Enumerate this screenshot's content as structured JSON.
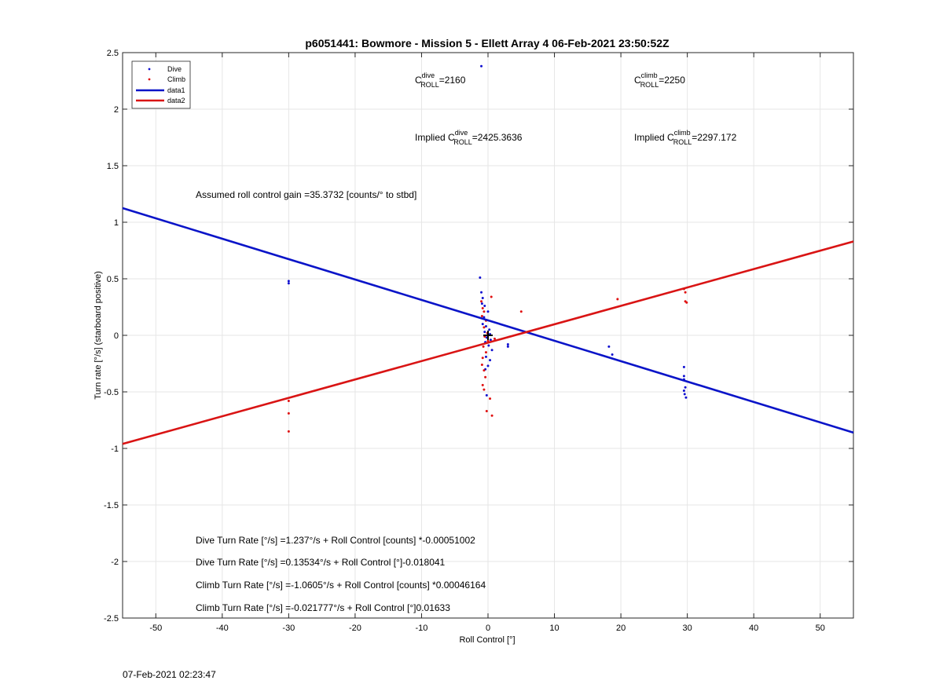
{
  "footer_timestamp": "07-Feb-2021 02:23:47",
  "colors": {
    "dive": "#1010d0",
    "climb": "#e01010",
    "dive_fit": "#0a14c8",
    "climb_fit": "#d91414",
    "grid": "#e6e6e6"
  },
  "chart_data": {
    "type": "scatter",
    "title": "p6051441: Bowmore - Mission 5 - Ellett Array 4 06-Feb-2021 23:50:52Z",
    "xlabel": "Roll Control [°]",
    "ylabel": "Turn rate [°/s] (starboard positive)",
    "xlim": [
      -55,
      55
    ],
    "ylim": [
      -2.5,
      2.5
    ],
    "xticks": [
      -50,
      -40,
      -30,
      -20,
      -10,
      0,
      10,
      20,
      30,
      40,
      50
    ],
    "yticks": [
      -2.5,
      -2,
      -1.5,
      -1,
      -0.5,
      0,
      0.5,
      1,
      1.5,
      2,
      2.5
    ],
    "grid": true,
    "legend_position": "top-left",
    "legend": [
      "Dive",
      "Climb",
      "data1",
      "data2"
    ],
    "series": [
      {
        "name": "Dive",
        "kind": "points",
        "color": "#1010d0",
        "points": [
          [
            -30,
            0.48
          ],
          [
            -30,
            0.46
          ],
          [
            -1,
            2.38
          ],
          [
            -1.2,
            0.51
          ],
          [
            -1,
            0.38
          ],
          [
            -0.8,
            0.33
          ],
          [
            -0.9,
            0.28
          ],
          [
            -0.5,
            0.26
          ],
          [
            0,
            0.21
          ],
          [
            -0.6,
            0.16
          ],
          [
            -0.8,
            0.1
          ],
          [
            -0.3,
            0.08
          ],
          [
            0.2,
            0.05
          ],
          [
            -0.5,
            0.03
          ],
          [
            0.3,
            0.01
          ],
          [
            -0.2,
            -0.02
          ],
          [
            0.4,
            -0.04
          ],
          [
            -0.4,
            -0.06
          ],
          [
            0.1,
            -0.09
          ],
          [
            0.6,
            -0.13
          ],
          [
            -0.3,
            -0.19
          ],
          [
            0.3,
            -0.22
          ],
          [
            0,
            -0.27
          ],
          [
            -0.4,
            -0.3
          ],
          [
            -0.2,
            -0.53
          ],
          [
            3,
            -0.08
          ],
          [
            3,
            -0.1
          ],
          [
            18.2,
            -0.1
          ],
          [
            18.7,
            -0.17
          ],
          [
            29.5,
            -0.28
          ],
          [
            29.5,
            -0.36
          ],
          [
            29.5,
            -0.39
          ],
          [
            29.7,
            -0.46
          ],
          [
            29.5,
            -0.49
          ],
          [
            29.6,
            -0.52
          ],
          [
            29.8,
            -0.55
          ]
        ]
      },
      {
        "name": "Climb",
        "kind": "points",
        "color": "#e01010",
        "points": [
          [
            -30,
            -0.58
          ],
          [
            -30,
            -0.69
          ],
          [
            -30,
            -0.85
          ],
          [
            -1,
            0.3
          ],
          [
            -0.8,
            0.24
          ],
          [
            -0.6,
            0.21
          ],
          [
            -0.9,
            0.17
          ],
          [
            -0.3,
            0.13
          ],
          [
            -0.6,
            0.07
          ],
          [
            -0.1,
            0.02
          ],
          [
            -0.5,
            -0.01
          ],
          [
            0,
            -0.05
          ],
          [
            -0.7,
            -0.1
          ],
          [
            -0.3,
            -0.15
          ],
          [
            -0.8,
            -0.2
          ],
          [
            -0.9,
            -0.26
          ],
          [
            -0.6,
            -0.31
          ],
          [
            -0.4,
            -0.37
          ],
          [
            -0.8,
            -0.44
          ],
          [
            -0.6,
            -0.48
          ],
          [
            0.3,
            -0.56
          ],
          [
            -0.2,
            -0.67
          ],
          [
            0.6,
            -0.71
          ],
          [
            0.5,
            0.34
          ],
          [
            1,
            -0.03
          ],
          [
            5,
            0.21
          ],
          [
            19.5,
            0.32
          ],
          [
            29.5,
            0.41
          ],
          [
            29.7,
            0.38
          ],
          [
            29.7,
            0.3
          ],
          [
            29.9,
            0.29
          ]
        ]
      },
      {
        "name": "data1",
        "kind": "line",
        "color": "#0a14c8",
        "x": [
          -55,
          55
        ],
        "y": [
          1.125,
          -0.86
        ]
      },
      {
        "name": "data2",
        "kind": "line",
        "color": "#d91414",
        "x": [
          -55,
          55
        ],
        "y": [
          -0.96,
          0.83
        ]
      }
    ],
    "marker_point": [
      0,
      0
    ],
    "annotations": {
      "c_dive_label": "C",
      "c_dive_sup": "dive",
      "c_dive_sub": "ROLL",
      "c_dive_value": "=2160",
      "c_climb_label": "C",
      "c_climb_sup": "climb",
      "c_climb_sub": "ROLL",
      "c_climb_value": "=2250",
      "implied_dive_prefix": "Implied C",
      "implied_dive_sup": "dive",
      "implied_dive_sub": "ROLL",
      "implied_dive_value": "=2425.3636",
      "implied_climb_prefix": "Implied C",
      "implied_climb_sup": "climb",
      "implied_climb_sub": "ROLL",
      "implied_climb_value": "=2297.172",
      "gain": "Assumed roll control gain =35.3732 [counts/° to stbd]",
      "eq1": "Dive Turn Rate [°/s] =1.237°/s + Roll Control [counts] *-0.00051002",
      "eq2": "Dive Turn Rate [°/s] =0.13534°/s + Roll Control [°]-0.018041",
      "eq3": "Climb Turn Rate [°/s] =-1.0605°/s + Roll Control [counts] *0.00046164",
      "eq4": "Climb Turn Rate [°/s] =-0.021777°/s + Roll Control [°]0.01633"
    }
  }
}
